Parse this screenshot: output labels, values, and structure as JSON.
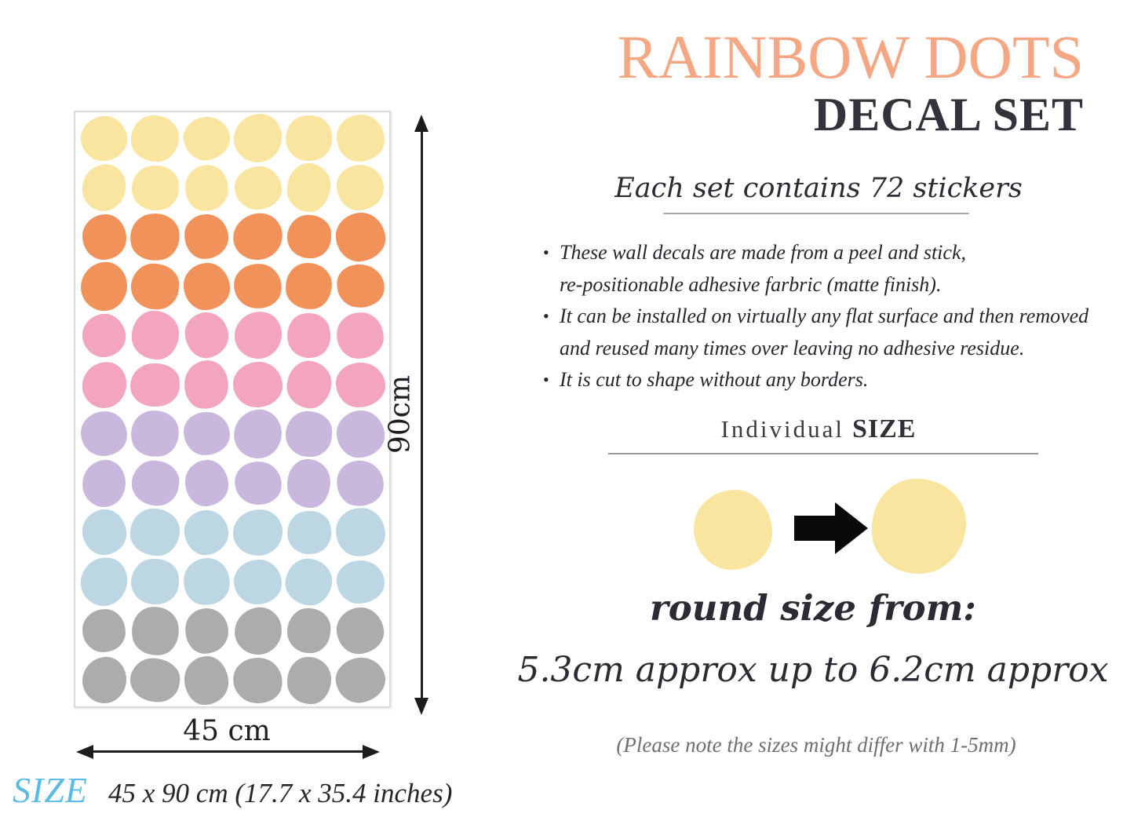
{
  "header": {
    "title": "RAINBOW DOTS",
    "subtitle": "DECAL SET"
  },
  "details": {
    "contains": "Each set contains 72 stickers",
    "bullets": [
      {
        "lines": [
          "These wall decals are made from a peel and stick,",
          "re-positionable adhesive farbric (matte finish)."
        ]
      },
      {
        "lines": [
          "It can be installed on virtually any flat surface and then removed",
          "and reused many times over leaving no adhesive residue."
        ]
      },
      {
        "lines": [
          "It is cut to shape without any borders."
        ]
      }
    ]
  },
  "individual": {
    "label_regular": "Individual",
    "label_emph": "SIZE",
    "round_size_heading": "round size from:",
    "round_size_range": "5.3cm approx up to 6.2cm approx"
  },
  "sheet": {
    "height_label": "90cm",
    "width_label": "45 cm",
    "rows": 12,
    "columns": 6,
    "sticker_count": 72,
    "row_colors": [
      "#FAE5A0",
      "#FAE5A0",
      "#F2925B",
      "#F2925B",
      "#F2A4C0",
      "#F2A4C0",
      "#C9B7DE",
      "#C9B7DE",
      "#BCD7E3",
      "#BCD7E3",
      "#ACACAC",
      "#ACACAC"
    ]
  },
  "size_demo": {
    "small_dot_color": "#FAE5A0",
    "large_dot_color": "#FAE5A0",
    "arrow_color": "#0A0A0A"
  },
  "footer": {
    "size_word": "SIZE",
    "dimensions": "45 x 90 cm (17.7 x 35.4 inches)",
    "note": "(Please note the sizes might differ with 1-5mm)"
  },
  "colors": {
    "title_accent": "#F5A784",
    "heading_dark": "#33333B",
    "body_text": "#26262C",
    "note_gray": "#6E6E74",
    "size_label_blue": "#5ABBE5",
    "dimension_line": "#1C1C1C",
    "palette": {
      "yellow": "#FAE5A0",
      "orange": "#F2925B",
      "pink": "#F2A4C0",
      "purple": "#C9B7DE",
      "blue": "#BCD7E3",
      "gray": "#ACACAC"
    }
  }
}
